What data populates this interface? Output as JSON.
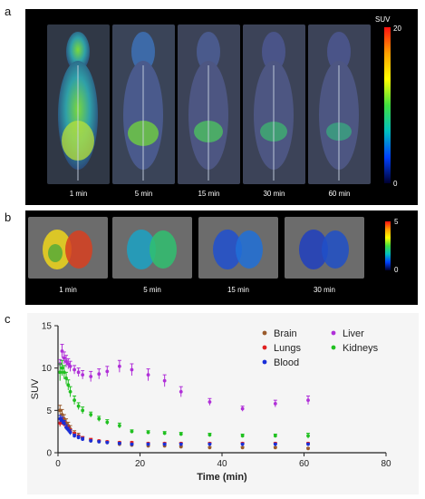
{
  "panels": {
    "a": {
      "letter": "a",
      "scans": [
        {
          "label": "1 min"
        },
        {
          "label": "5 min"
        },
        {
          "label": "15 min"
        },
        {
          "label": "30 min"
        },
        {
          "label": "60 min"
        }
      ],
      "colorbar": {
        "title": "SUV",
        "max": "20",
        "min": "0"
      }
    },
    "b": {
      "letter": "b",
      "scans": [
        {
          "label": "1 min"
        },
        {
          "label": "5 min"
        },
        {
          "label": "15 min"
        },
        {
          "label": "30 min"
        }
      ],
      "colorbar": {
        "max": "5",
        "min": "0"
      }
    },
    "c": {
      "letter": "c"
    }
  },
  "colors": {
    "brain": "#9a5b2c",
    "lungs": "#e02020",
    "blood": "#1a2fd8",
    "liver": "#b030d8",
    "kidneys": "#20c020"
  },
  "chart_data": {
    "type": "scatter",
    "xlabel": "Time (min)",
    "ylabel": "SUV",
    "xlim": [
      0,
      80
    ],
    "ylim": [
      0,
      15
    ],
    "xticks": [
      "0",
      "20",
      "40",
      "60",
      "80"
    ],
    "yticks": [
      "0",
      "5",
      "10",
      "15"
    ],
    "legend_position": "top-right",
    "series": [
      {
        "name": "Brain",
        "color": "#9a5b2c",
        "x": [
          0.5,
          1,
          1.5,
          2,
          2.5,
          3,
          4,
          5,
          6,
          8,
          10,
          12,
          15,
          18,
          22,
          26,
          30,
          37,
          45,
          53,
          61
        ],
        "y": [
          5.0,
          4.5,
          4.0,
          3.5,
          3.2,
          2.8,
          2.3,
          2.0,
          1.7,
          1.4,
          1.3,
          1.2,
          1.0,
          0.9,
          0.8,
          0.8,
          0.7,
          0.6,
          0.6,
          0.6,
          0.5
        ],
        "err": [
          0.6,
          0.6,
          0.5,
          0.5,
          0.4,
          0.4,
          0.3,
          0.3,
          0.2,
          0.2,
          0.1,
          0.1,
          0.1,
          0.1,
          0.1,
          0.1,
          0.1,
          0.1,
          0.1,
          0.1,
          0.1
        ]
      },
      {
        "name": "Lungs",
        "color": "#e02020",
        "x": [
          0.5,
          1,
          1.5,
          2,
          2.5,
          3,
          4,
          5,
          6,
          8,
          10,
          12,
          15,
          18,
          22,
          26,
          30,
          37,
          45,
          53,
          61
        ],
        "y": [
          3.5,
          3.7,
          3.4,
          3.0,
          2.8,
          2.5,
          2.2,
          1.9,
          1.7,
          1.5,
          1.4,
          1.3,
          1.2,
          1.2,
          1.1,
          1.1,
          1.1,
          1.1,
          1.1,
          1.1,
          1.1
        ],
        "err": [
          0.4,
          0.4,
          0.3,
          0.3,
          0.3,
          0.3,
          0.2,
          0.2,
          0.2,
          0.2,
          0.1,
          0.1,
          0.1,
          0.1,
          0.1,
          0.1,
          0.1,
          0.1,
          0.1,
          0.1,
          0.1
        ]
      },
      {
        "name": "Blood",
        "color": "#1a2fd8",
        "x": [
          0.5,
          1,
          1.5,
          2,
          2.5,
          3,
          4,
          5,
          6,
          8,
          10,
          12,
          15,
          18,
          22,
          26,
          30,
          37,
          45,
          53,
          61
        ],
        "y": [
          4.0,
          3.8,
          3.5,
          3.0,
          2.7,
          2.4,
          2.0,
          1.8,
          1.6,
          1.4,
          1.3,
          1.2,
          1.1,
          1.0,
          1.0,
          1.0,
          1.0,
          1.0,
          1.0,
          1.0,
          1.0
        ],
        "err": [
          0.4,
          0.4,
          0.3,
          0.3,
          0.3,
          0.3,
          0.2,
          0.2,
          0.2,
          0.1,
          0.1,
          0.1,
          0.1,
          0.1,
          0.1,
          0.1,
          0.1,
          0.1,
          0.1,
          0.1,
          0.1
        ]
      },
      {
        "name": "Liver",
        "color": "#b030d8",
        "x": [
          0.5,
          1,
          1.5,
          2,
          2.5,
          3,
          4,
          5,
          6,
          8,
          10,
          12,
          15,
          18,
          22,
          26,
          30,
          37,
          45,
          53,
          61
        ],
        "y": [
          10.5,
          12.0,
          11.2,
          10.8,
          10.5,
          10.2,
          9.8,
          9.5,
          9.2,
          9.0,
          9.3,
          9.6,
          10.2,
          9.8,
          9.2,
          8.5,
          7.2,
          6.0,
          5.2,
          5.8,
          6.2
        ],
        "err": [
          0.5,
          0.8,
          0.7,
          0.7,
          0.6,
          0.6,
          0.5,
          0.5,
          0.5,
          0.6,
          0.6,
          0.6,
          0.7,
          0.7,
          0.7,
          0.7,
          0.6,
          0.4,
          0.3,
          0.4,
          0.5
        ]
      },
      {
        "name": "Kidneys",
        "color": "#20c020",
        "x": [
          0.5,
          1,
          1.5,
          2,
          2.5,
          3,
          4,
          5,
          6,
          8,
          10,
          12,
          15,
          18,
          22,
          26,
          30,
          37,
          45,
          53,
          61
        ],
        "y": [
          9.5,
          10.0,
          9.5,
          8.8,
          8.0,
          7.2,
          6.2,
          5.5,
          5.0,
          4.5,
          4.0,
          3.6,
          3.2,
          2.5,
          2.4,
          2.3,
          2.2,
          2.1,
          2.0,
          2.0,
          2.0
        ],
        "err": [
          1.0,
          0.9,
          0.8,
          0.7,
          0.6,
          0.6,
          0.5,
          0.4,
          0.4,
          0.3,
          0.3,
          0.3,
          0.3,
          0.2,
          0.2,
          0.2,
          0.2,
          0.2,
          0.2,
          0.2,
          0.3
        ]
      }
    ]
  }
}
